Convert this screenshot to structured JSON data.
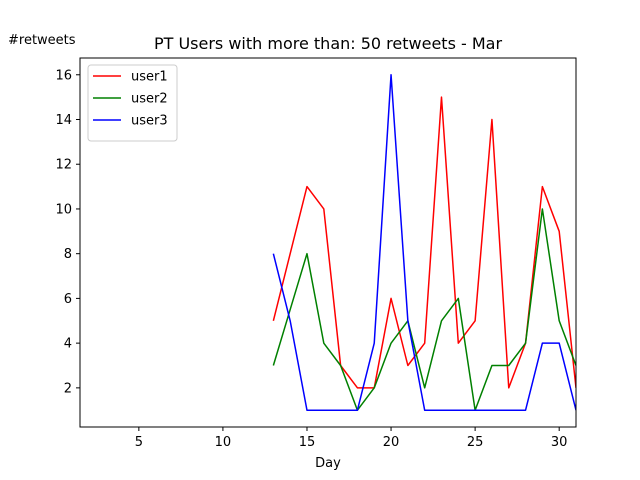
{
  "chart_data": {
    "type": "line",
    "title": "PT Users with more than: 50 retweets - Mar",
    "xlabel": "Day",
    "ylabel": "#retweets",
    "xlim": [
      1.5,
      31
    ],
    "ylim": [
      0.25,
      16.75
    ],
    "xticks": [
      5,
      10,
      15,
      20,
      25,
      30
    ],
    "yticks": [
      2,
      4,
      6,
      8,
      10,
      12,
      14,
      16
    ],
    "grid": false,
    "legend_position": "top-left",
    "x": [
      13,
      14,
      15,
      16,
      17,
      18,
      19,
      20,
      21,
      22,
      23,
      24,
      25,
      26,
      27,
      28,
      29,
      30,
      31
    ],
    "series": [
      {
        "name": "user1",
        "color": "#ff0000",
        "values": [
          5,
          8,
          11,
          10,
          3,
          2,
          2,
          6,
          3,
          4,
          15,
          4,
          5,
          14,
          2,
          4,
          11,
          9,
          2
        ]
      },
      {
        "name": "user2",
        "color": "#008000",
        "values": [
          3,
          5.5,
          8,
          4,
          3,
          1,
          2,
          4,
          5,
          2,
          5,
          6,
          1,
          3,
          3,
          4,
          10,
          5,
          3
        ]
      },
      {
        "name": "user3",
        "color": "#0000ff",
        "values": [
          8,
          5,
          1,
          1,
          1,
          1,
          4,
          16,
          5,
          1,
          1,
          1,
          1,
          1,
          1,
          1,
          4,
          4,
          1
        ]
      }
    ]
  }
}
